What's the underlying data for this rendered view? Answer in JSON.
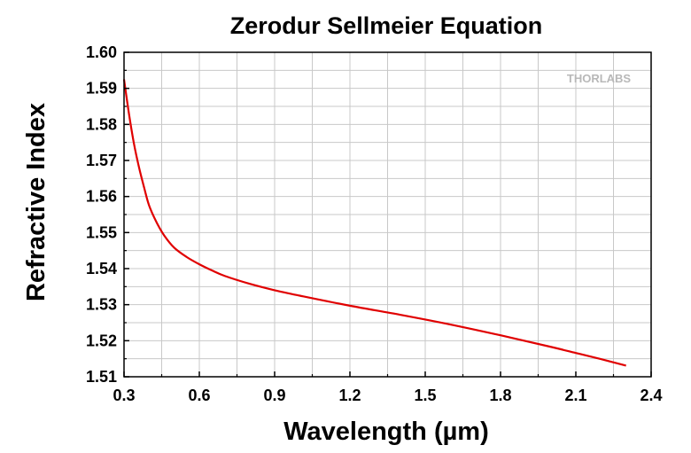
{
  "chart_data": {
    "type": "line",
    "title": "Zerodur Sellmeier Equation",
    "xlabel": "Wavelength (µm)",
    "ylabel": "Refractive Index",
    "xlim": [
      0.3,
      2.4
    ],
    "ylim": [
      1.51,
      1.6
    ],
    "xticks": [
      "0.3",
      "0.6",
      "0.9",
      "1.2",
      "1.5",
      "1.8",
      "2.1",
      "2.4"
    ],
    "yticks": [
      "1.51",
      "1.52",
      "1.53",
      "1.54",
      "1.55",
      "1.56",
      "1.57",
      "1.58",
      "1.59",
      "1.60"
    ],
    "grid": true,
    "watermark": "THORLABS",
    "series": [
      {
        "color": "#e00000",
        "x": [
          0.3,
          0.32,
          0.34,
          0.36,
          0.38,
          0.4,
          0.43,
          0.46,
          0.5,
          0.55,
          0.6,
          0.65,
          0.7,
          0.8,
          0.9,
          1.0,
          1.2,
          1.4,
          1.6,
          1.8,
          2.0,
          2.1,
          2.2,
          2.3
        ],
        "y": [
          1.5925,
          1.5828,
          1.5745,
          1.568,
          1.5625,
          1.5575,
          1.5528,
          1.5492,
          1.5458,
          1.5432,
          1.5412,
          1.5395,
          1.538,
          1.5358,
          1.534,
          1.5325,
          1.5297,
          1.5272,
          1.5245,
          1.5215,
          1.5183,
          1.5166,
          1.5149,
          1.5131
        ]
      }
    ]
  }
}
